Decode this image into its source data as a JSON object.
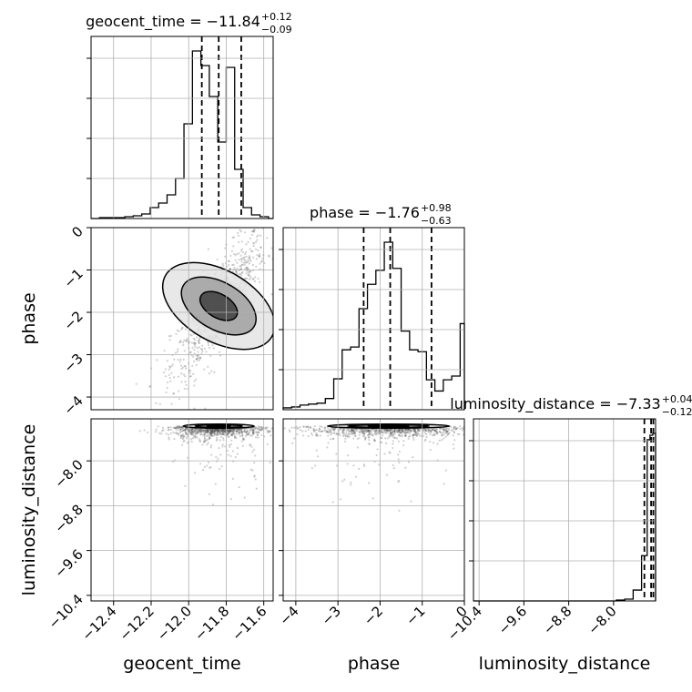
{
  "chart_data": {
    "type": "corner",
    "parameters": [
      {
        "key": "geocent_time",
        "label": "geocent_time",
        "title": {
          "prefix": "geocent_time = −11.84",
          "plus": "+0.12",
          "minus": "−0.09"
        },
        "median": -11.84,
        "quantiles": [
          -11.93,
          -11.84,
          -11.72
        ],
        "range": [
          -12.52,
          -11.55
        ],
        "ticks": [
          {
            "v": -12.4,
            "label": "−12.4"
          },
          {
            "v": -12.2,
            "label": "−12.2"
          },
          {
            "v": -12.0,
            "label": "−12.0"
          },
          {
            "v": -11.8,
            "label": "−11.8"
          },
          {
            "v": -11.6,
            "label": "−11.6"
          }
        ],
        "hist": {
          "edges": [
            -12.52,
            -12.475,
            -12.43,
            -12.385,
            -12.34,
            -12.295,
            -12.25,
            -12.205,
            -12.16,
            -12.115,
            -12.07,
            -12.025,
            -11.98,
            -11.935,
            -11.89,
            -11.845,
            -11.8,
            -11.755,
            -11.71,
            -11.665,
            -11.62,
            -11.575,
            -11.55
          ],
          "counts": [
            0,
            1,
            1,
            1,
            2,
            3,
            5,
            12,
            17,
            26,
            44,
            104,
            184,
            168,
            134,
            84,
            166,
            54,
            12,
            4,
            2,
            0
          ]
        }
      },
      {
        "key": "phase",
        "label": "phase",
        "title": {
          "prefix": "phase = −1.76",
          "plus": "+0.98",
          "minus": "−0.63"
        },
        "median": -1.76,
        "quantiles": [
          -2.39,
          -1.76,
          -0.78
        ],
        "range": [
          -4.3,
          0.0
        ],
        "ticks": [
          {
            "v": -4,
            "label": "−4"
          },
          {
            "v": -3,
            "label": "−3"
          },
          {
            "v": -2,
            "label": "−2"
          },
          {
            "v": -1,
            "label": "−1"
          },
          {
            "v": 0,
            "label": "0"
          }
        ],
        "hist": {
          "edges": [
            -4.3,
            -4.1,
            -3.9,
            -3.7,
            -3.5,
            -3.3,
            -3.1,
            -2.9,
            -2.7,
            -2.5,
            -2.3,
            -2.1,
            -1.9,
            -1.7,
            -1.5,
            -1.3,
            -1.1,
            -0.9,
            -0.7,
            -0.5,
            -0.3,
            -0.1,
            0.0
          ],
          "counts": [
            2,
            3,
            5,
            6,
            7,
            12,
            33,
            64,
            67,
            108,
            134,
            149,
            179,
            151,
            84,
            64,
            62,
            32,
            20,
            32,
            36,
            92
          ]
        }
      },
      {
        "key": "luminosity_distance",
        "label": "luminosity_distance",
        "title": {
          "prefix": "luminosity_distance = −7.33",
          "plus": "+0.04",
          "minus": "−0.12"
        },
        "median": -7.33,
        "quantiles": [
          -7.45,
          -7.33,
          -7.29
        ],
        "range": [
          -10.5,
          -7.25
        ],
        "ticks": [
          {
            "v": -10.4,
            "label": "−10.4"
          },
          {
            "v": -9.6,
            "label": "−9.6"
          },
          {
            "v": -8.8,
            "label": "−8.8"
          },
          {
            "v": -8.0,
            "label": "−8.0"
          }
        ],
        "hist": {
          "edges": [
            -10.5,
            -10.35,
            -10.2,
            -10.05,
            -9.9,
            -9.75,
            -9.6,
            -9.45,
            -9.3,
            -9.15,
            -9.0,
            -8.85,
            -8.7,
            -8.55,
            -8.4,
            -8.25,
            -8.1,
            -7.95,
            -7.8,
            -7.65,
            -7.5,
            -7.4,
            -7.35,
            -7.3,
            -7.25
          ],
          "counts": [
            0,
            0,
            0,
            0,
            0,
            0,
            0,
            0,
            0,
            0,
            0,
            0,
            0,
            0,
            0,
            0,
            0,
            1,
            2,
            12,
            50,
            178,
            183,
            185
          ]
        }
      }
    ],
    "pairs": [
      {
        "x": "geocent_time",
        "y": "phase",
        "center": [
          -11.84,
          -1.85
        ],
        "corr": 0.72
      },
      {
        "x": "geocent_time",
        "y": "luminosity_distance",
        "center": [
          -11.84,
          -7.38
        ],
        "corr": 0.0
      },
      {
        "x": "phase",
        "y": "luminosity_distance",
        "center": [
          -1.8,
          -7.38
        ],
        "corr": 0.0
      }
    ],
    "grid": true,
    "colors": {
      "line": "#000000",
      "grid": "#b0b0b0",
      "points": "#444444",
      "frame": "#000000"
    }
  }
}
